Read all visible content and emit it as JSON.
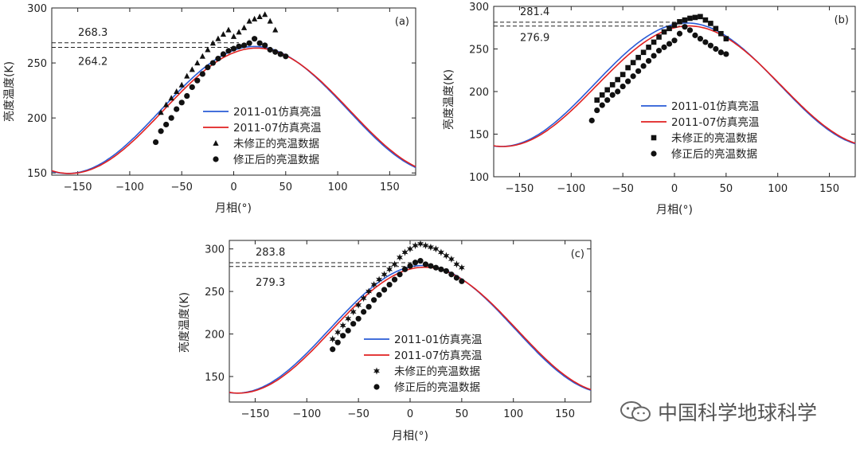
{
  "chart_data": [
    {
      "type": "line",
      "panel_label": "(a)",
      "xlabel": "月相(°)",
      "ylabel": "亮度温度(K)",
      "xlim": [
        -175,
        175
      ],
      "ylim": [
        148,
        300
      ],
      "xticks": [
        -150,
        -100,
        -50,
        0,
        50,
        100,
        150
      ],
      "yticks": [
        150,
        200,
        250,
        300
      ],
      "grid": false,
      "legend_position": "center-right",
      "series": [
        {
          "name": "2011-01仿真亮温",
          "color": "#2a5bd6",
          "min": 149.5,
          "max": 265.0,
          "peak_x": 20
        },
        {
          "name": "2011-07仿真亮温",
          "color": "#e02020",
          "min": 149.5,
          "max": 263.5,
          "peak_x": 22
        }
      ],
      "scatter": [
        {
          "name": "未修正的亮温数据",
          "marker": "triangle",
          "points": [
            [
              -70,
              205
            ],
            [
              -65,
              212
            ],
            [
              -60,
              218
            ],
            [
              -55,
              224
            ],
            [
              -50,
              230
            ],
            [
              -45,
              238
            ],
            [
              -40,
              244
            ],
            [
              -35,
              250
            ],
            [
              -30,
              256
            ],
            [
              -25,
              262
            ],
            [
              -20,
              268
            ],
            [
              -15,
              272
            ],
            [
              -10,
              276
            ],
            [
              -5,
              280
            ],
            [
              0,
              274
            ],
            [
              5,
              278
            ],
            [
              10,
              282
            ],
            [
              15,
              288
            ],
            [
              20,
              290
            ],
            [
              25,
              292
            ],
            [
              30,
              294
            ],
            [
              35,
              288
            ],
            [
              40,
              280
            ]
          ]
        },
        {
          "name": "修正后的亮温数据",
          "marker": "circle",
          "points": [
            [
              -75,
              178
            ],
            [
              -70,
              188
            ],
            [
              -65,
              194
            ],
            [
              -60,
              200
            ],
            [
              -55,
              208
            ],
            [
              -50,
              214
            ],
            [
              -45,
              220
            ],
            [
              -40,
              228
            ],
            [
              -35,
              234
            ],
            [
              -30,
              240
            ],
            [
              -25,
              246
            ],
            [
              -20,
              250
            ],
            [
              -15,
              254
            ],
            [
              -10,
              258
            ],
            [
              -5,
              261
            ],
            [
              0,
              263
            ],
            [
              5,
              265
            ],
            [
              10,
              266
            ],
            [
              15,
              268
            ],
            [
              20,
              272
            ],
            [
              25,
              268
            ],
            [
              30,
              266
            ],
            [
              35,
              262
            ],
            [
              40,
              260
            ],
            [
              45,
              258
            ],
            [
              50,
              256
            ]
          ]
        }
      ],
      "hlines": [
        {
          "y": 268.3,
          "label": "268.3"
        },
        {
          "y": 264.2,
          "label": "264.2"
        }
      ]
    },
    {
      "type": "line",
      "panel_label": "(b)",
      "xlabel": "月相(°)",
      "ylabel": "亮度温度(K)",
      "xlim": [
        -175,
        175
      ],
      "ylim": [
        100,
        300
      ],
      "xticks": [
        -150,
        -100,
        -50,
        0,
        50,
        100,
        150
      ],
      "yticks": [
        100,
        150,
        200,
        250,
        300
      ],
      "grid": false,
      "legend_position": "center-right",
      "series": [
        {
          "name": "2011-01仿真亮温",
          "color": "#2a5bd6",
          "min": 135.5,
          "max": 280.5,
          "peak_x": 12
        },
        {
          "name": "2011-07仿真亮温",
          "color": "#e02020",
          "min": 135.5,
          "max": 277.0,
          "peak_x": 14
        }
      ],
      "scatter": [
        {
          "name": "未修正的亮温数据",
          "marker": "square",
          "points": [
            [
              -75,
              190
            ],
            [
              -70,
              196
            ],
            [
              -65,
              202
            ],
            [
              -60,
              208
            ],
            [
              -55,
              214
            ],
            [
              -50,
              220
            ],
            [
              -45,
              228
            ],
            [
              -40,
              234
            ],
            [
              -35,
              240
            ],
            [
              -30,
              246
            ],
            [
              -25,
              252
            ],
            [
              -20,
              258
            ],
            [
              -15,
              264
            ],
            [
              -10,
              270
            ],
            [
              -5,
              274
            ],
            [
              0,
              278
            ],
            [
              5,
              282
            ],
            [
              10,
              284
            ],
            [
              15,
              286
            ],
            [
              20,
              287
            ],
            [
              25,
              288
            ],
            [
              30,
              284
            ],
            [
              35,
              280
            ],
            [
              40,
              274
            ],
            [
              45,
              268
            ],
            [
              50,
              262
            ]
          ]
        },
        {
          "name": "修正后的亮温数据",
          "marker": "circle",
          "points": [
            [
              -80,
              166
            ],
            [
              -75,
              178
            ],
            [
              -70,
              184
            ],
            [
              -65,
              190
            ],
            [
              -60,
              196
            ],
            [
              -55,
              200
            ],
            [
              -50,
              206
            ],
            [
              -45,
              212
            ],
            [
              -40,
              218
            ],
            [
              -35,
              224
            ],
            [
              -30,
              230
            ],
            [
              -25,
              236
            ],
            [
              -20,
              242
            ],
            [
              -15,
              248
            ],
            [
              -10,
              252
            ],
            [
              -5,
              256
            ],
            [
              0,
              260
            ],
            [
              5,
              268
            ],
            [
              10,
              276
            ],
            [
              15,
              272
            ],
            [
              20,
              266
            ],
            [
              25,
              262
            ],
            [
              30,
              258
            ],
            [
              35,
              254
            ],
            [
              40,
              250
            ],
            [
              45,
              246
            ],
            [
              50,
              244
            ]
          ]
        }
      ],
      "hlines": [
        {
          "y": 281.4,
          "label": "281.4"
        },
        {
          "y": 276.9,
          "label": "276.9"
        }
      ]
    },
    {
      "type": "line",
      "panel_label": "(c)",
      "xlabel": "月相(°)",
      "ylabel": "亮度温度(K)",
      "xlim": [
        -175,
        175
      ],
      "ylim": [
        120,
        310
      ],
      "xticks": [
        -150,
        -100,
        -50,
        0,
        50,
        100,
        150
      ],
      "yticks": [
        150,
        200,
        250,
        300
      ],
      "grid": false,
      "legend_position": "center-right",
      "series": [
        {
          "name": "2011-01仿真亮温",
          "color": "#2a5bd6",
          "min": 130.5,
          "max": 280.5,
          "peak_x": 12
        },
        {
          "name": "2011-07仿真亮温",
          "color": "#e02020",
          "min": 130.5,
          "max": 278.5,
          "peak_x": 14
        }
      ],
      "scatter": [
        {
          "name": "未修正的亮温数据",
          "marker": "star",
          "points": [
            [
              -75,
              194
            ],
            [
              -70,
              202
            ],
            [
              -65,
              210
            ],
            [
              -60,
              218
            ],
            [
              -55,
              226
            ],
            [
              -50,
              234
            ],
            [
              -45,
              242
            ],
            [
              -40,
              250
            ],
            [
              -35,
              258
            ],
            [
              -30,
              264
            ],
            [
              -25,
              270
            ],
            [
              -20,
              276
            ],
            [
              -15,
              282
            ],
            [
              -10,
              290
            ],
            [
              -5,
              296
            ],
            [
              0,
              300
            ],
            [
              5,
              304
            ],
            [
              10,
              306
            ],
            [
              15,
              304
            ],
            [
              20,
              302
            ],
            [
              25,
              300
            ],
            [
              30,
              296
            ],
            [
              35,
              292
            ],
            [
              40,
              288
            ],
            [
              45,
              282
            ],
            [
              50,
              278
            ]
          ]
        },
        {
          "name": "修正后的亮温数据",
          "marker": "circle",
          "points": [
            [
              -75,
              182
            ],
            [
              -70,
              190
            ],
            [
              -65,
              198
            ],
            [
              -60,
              204
            ],
            [
              -55,
              212
            ],
            [
              -50,
              218
            ],
            [
              -45,
              226
            ],
            [
              -40,
              232
            ],
            [
              -35,
              240
            ],
            [
              -30,
              246
            ],
            [
              -25,
              252
            ],
            [
              -20,
              258
            ],
            [
              -15,
              264
            ],
            [
              -10,
              270
            ],
            [
              -5,
              276
            ],
            [
              0,
              280
            ],
            [
              5,
              284
            ],
            [
              10,
              286
            ],
            [
              15,
              282
            ],
            [
              20,
              280
            ],
            [
              25,
              278
            ],
            [
              30,
              276
            ],
            [
              35,
              274
            ],
            [
              40,
              270
            ],
            [
              45,
              266
            ],
            [
              50,
              262
            ]
          ]
        }
      ],
      "hlines": [
        {
          "y": 283.8,
          "label": "283.8"
        },
        {
          "y": 279.3,
          "label": "279.3"
        }
      ]
    }
  ],
  "watermark": {
    "text": "中国科学地球科学",
    "icon": "wechat-icon"
  }
}
